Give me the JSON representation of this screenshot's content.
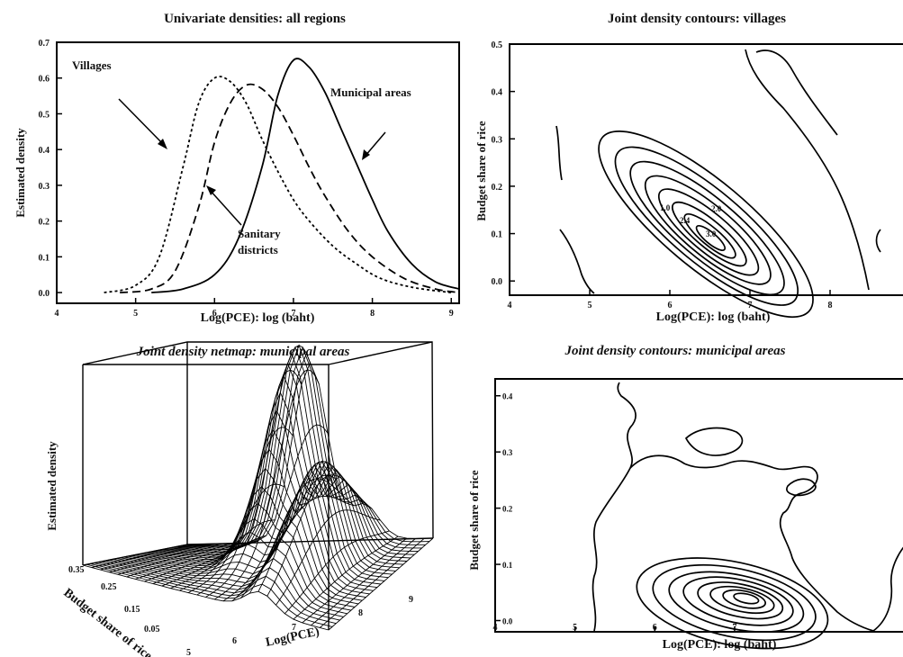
{
  "chart_data": [
    {
      "type": "line",
      "title": "Univariate densities: all regions",
      "xlabel": "Log(PCE): log (baht)",
      "ylabel": "Estimated density",
      "xlim": [
        4,
        9.1
      ],
      "ylim": [
        -0.03,
        0.7
      ],
      "xticks": [
        "4",
        "5",
        "6",
        "7",
        "8",
        "9"
      ],
      "yticks": [
        "0.0",
        "0.1",
        "0.2",
        "0.3",
        "0.4",
        "0.5",
        "0.6",
        "0.7"
      ],
      "grid": false,
      "series": [
        {
          "name": "Villages",
          "style": "dotted",
          "x": [
            4.6,
            5.0,
            5.3,
            5.6,
            5.8,
            6.0,
            6.2,
            6.4,
            6.6,
            6.8,
            7.0,
            7.2,
            7.5,
            7.8,
            8.1,
            8.5,
            9.0
          ],
          "y": [
            0.0,
            0.02,
            0.1,
            0.35,
            0.53,
            0.6,
            0.59,
            0.53,
            0.43,
            0.34,
            0.26,
            0.2,
            0.13,
            0.08,
            0.04,
            0.015,
            0.0
          ]
        },
        {
          "name": "Sanitary districts",
          "style": "dashed",
          "x": [
            4.8,
            5.2,
            5.5,
            5.8,
            6.0,
            6.2,
            6.4,
            6.6,
            6.8,
            7.0,
            7.2,
            7.4,
            7.7,
            8.0,
            8.4,
            8.8,
            9.1
          ],
          "y": [
            0.0,
            0.01,
            0.06,
            0.24,
            0.42,
            0.53,
            0.58,
            0.57,
            0.52,
            0.44,
            0.35,
            0.27,
            0.17,
            0.1,
            0.04,
            0.01,
            0.0
          ]
        },
        {
          "name": "Municipal areas",
          "style": "solid",
          "x": [
            5.2,
            5.6,
            6.0,
            6.3,
            6.6,
            6.8,
            7.0,
            7.2,
            7.4,
            7.6,
            7.8,
            8.0,
            8.2,
            8.5,
            8.8,
            9.1
          ],
          "y": [
            0.0,
            0.01,
            0.05,
            0.15,
            0.35,
            0.55,
            0.65,
            0.63,
            0.56,
            0.46,
            0.36,
            0.26,
            0.17,
            0.08,
            0.03,
            0.01
          ]
        }
      ],
      "annotations": [
        "Villages",
        "Municipal areas",
        "Sanitary",
        "districts"
      ]
    },
    {
      "type": "contour",
      "title": "Joint density contours: villages",
      "xlabel": "Log(PCE): log (baht)",
      "ylabel": "Budget share of rice",
      "xlim": [
        4,
        9
      ],
      "ylim": [
        -0.03,
        0.5
      ],
      "xticks": [
        "4",
        "5",
        "6",
        "7",
        "8"
      ],
      "yticks": [
        "0.0",
        "0.1",
        "0.2",
        "0.3",
        "0.4",
        "0.5"
      ],
      "grid": false,
      "peak": {
        "x": 6.45,
        "y": 0.12
      },
      "contour_labels": [
        "1.0",
        "2.0",
        "2.4",
        "3.0"
      ]
    },
    {
      "type": "surface",
      "title": "Joint density netmap: municipal areas",
      "xlabel": "Log(PCE)",
      "ylabel": "Budget share of rice",
      "zlabel": "Estimated density",
      "xticks": [
        "5",
        "6",
        "7",
        "8",
        "9"
      ],
      "yticks": [
        "0.35",
        "0.25",
        "0.15",
        "0.05"
      ],
      "peak": {
        "x": 7.0,
        "y": 0.05
      }
    },
    {
      "type": "contour",
      "title": "Joint density contours: municipal areas",
      "xlabel": "Log(PCE): log (baht)",
      "ylabel": "Budget share of rice",
      "xlim": [
        4,
        9.2
      ],
      "ylim": [
        -0.02,
        0.43
      ],
      "xticks": [
        "4",
        "5",
        "6",
        "7"
      ],
      "yticks": [
        "0.0",
        "0.1",
        "0.2",
        "0.3",
        "0.4"
      ],
      "grid": false,
      "peak": {
        "x": 7.1,
        "y": 0.04
      }
    }
  ]
}
